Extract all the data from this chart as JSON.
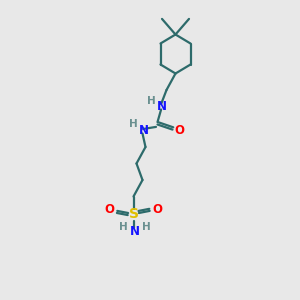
{
  "bg_color": "#e8e8e8",
  "bond_color": "#2d6b6b",
  "N_color": "#1414ff",
  "O_color": "#ff0000",
  "S_color": "#e0c000",
  "H_color": "#6a9090",
  "figsize": [
    3.0,
    3.0
  ],
  "dpi": 100,
  "lw": 1.6,
  "xlim": [
    0,
    10
  ],
  "ylim": [
    0,
    10
  ]
}
